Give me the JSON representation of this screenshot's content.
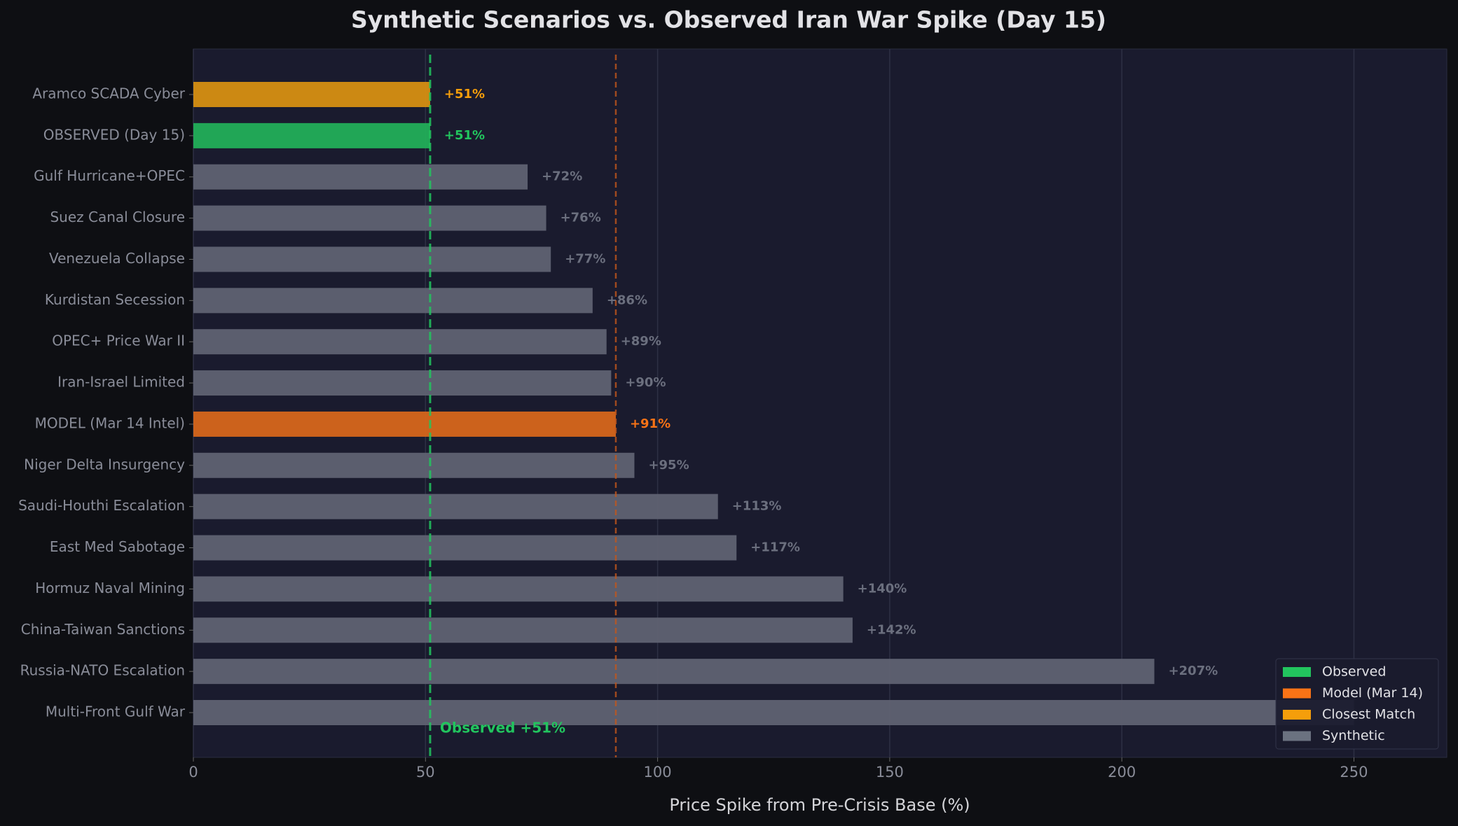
{
  "chart_data": {
    "type": "barh",
    "title": "Synthetic Scenarios vs. Observed Iran War Spike (Day 15)",
    "xlabel": "Price Spike from Pre-Crisis Base (%)",
    "categories": [
      "Aramco SCADA Cyber",
      "OBSERVED (Day 15)",
      "Gulf Hurricane+OPEC",
      "Suez Canal Closure",
      "Venezuela Collapse",
      "Kurdistan Secession",
      "OPEC+ Price War II",
      "Iran-Israel Limited",
      "MODEL (Mar 14 Intel)",
      "Niger Delta Insurgency",
      "Saudi-Houthi Escalation",
      "East Med Sabotage",
      "Hormuz Naval Mining",
      "China-Taiwan Sanctions",
      "Russia-NATO Escalation",
      "Multi-Front Gulf War"
    ],
    "values": [
      51,
      51,
      72,
      76,
      77,
      86,
      89,
      90,
      91,
      95,
      113,
      117,
      140,
      142,
      207,
      250
    ],
    "value_labels": [
      "+51%",
      "+51%",
      "+72%",
      "+76%",
      "+77%",
      "+86%",
      "+89%",
      "+90%",
      "+91%",
      "+95%",
      "+113%",
      "+117%",
      "+140%",
      "+142%",
      "+207%",
      null
    ],
    "bar_colors": [
      "#d68f12",
      "#22ae58",
      "#5f6272",
      "#5f6272",
      "#5f6272",
      "#5f6272",
      "#5f6272",
      "#5f6272",
      "#d6661b",
      "#5f6272",
      "#5f6272",
      "#5f6272",
      "#5f6272",
      "#5f6272",
      "#5f6272",
      "#5f6272"
    ],
    "value_label_colors": [
      "#f59e0b",
      "#22c55e",
      "#6b6f7e",
      "#6b6f7e",
      "#6b6f7e",
      "#6b6f7e",
      "#6b6f7e",
      "#6b6f7e",
      "#f97316",
      "#6b6f7e",
      "#6b6f7e",
      "#6b6f7e",
      "#6b6f7e",
      "#6b6f7e",
      "#6b6f7e",
      "#6b6f7e"
    ],
    "xlim": [
      0,
      270
    ],
    "xticks": [
      0,
      50,
      100,
      150,
      200,
      250
    ],
    "grid": true,
    "reference_lines": [
      {
        "value": 51,
        "color": "#22c55e",
        "label": "Observed +51%"
      },
      {
        "value": 91,
        "color": "#c2561c"
      }
    ],
    "legend": [
      {
        "name": "Observed",
        "color": "#22c55e"
      },
      {
        "name": "Model (Mar 14)",
        "color": "#f97316"
      },
      {
        "name": "Closest Match",
        "color": "#f59e0b"
      },
      {
        "name": "Synthetic",
        "color": "#6b7280"
      }
    ],
    "legend_loc": "lower right"
  }
}
